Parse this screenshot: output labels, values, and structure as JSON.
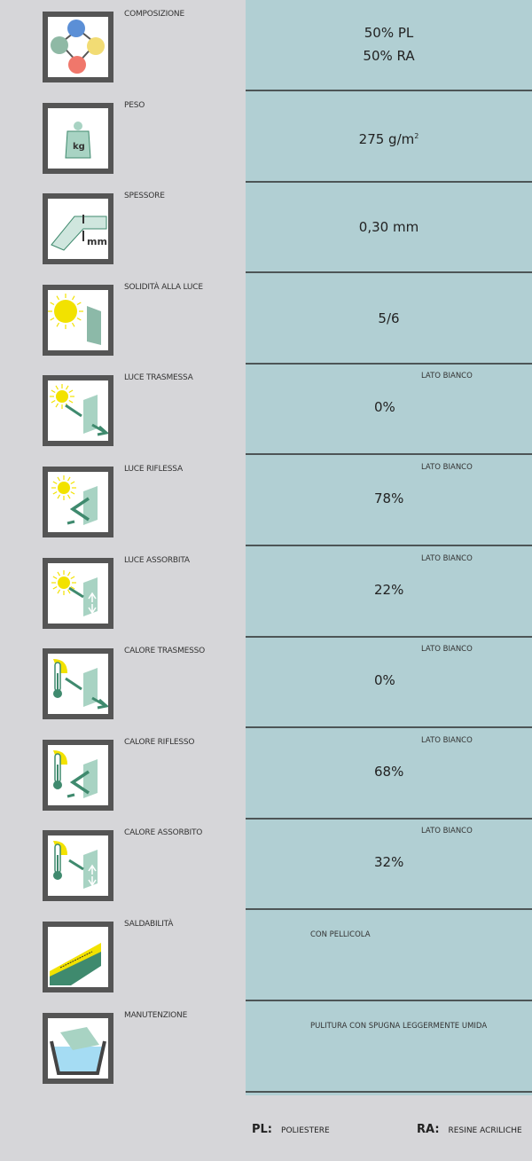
{
  "rows": [
    {
      "label": "COMPOSIZIONE",
      "icon": "molecule-icon",
      "lines": [
        "50% PL",
        "50% RA"
      ]
    },
    {
      "label": "PESO",
      "icon": "kg-weight-icon",
      "value": "275 g/m",
      "sup": "2"
    },
    {
      "label": "SPESSORE",
      "icon": "thickness-mm-icon",
      "value": "0,30 mm"
    },
    {
      "label": "SOLIDITÀ ALLA LUCE",
      "icon": "sun-panel-icon",
      "value": "5/6"
    },
    {
      "label": "LUCE TRASMESSA",
      "icon": "light-transmitted-icon",
      "side": "LATO BIANCO",
      "value": "0%"
    },
    {
      "label": "LUCE RIFLESSA",
      "icon": "light-reflected-icon",
      "side": "LATO BIANCO",
      "value": "78%"
    },
    {
      "label": "LUCE ASSORBITA",
      "icon": "light-absorbed-icon",
      "side": "LATO BIANCO",
      "value": "22%"
    },
    {
      "label": "CALORE TRASMESSO",
      "icon": "heat-transmitted-icon",
      "side": "LATO BIANCO",
      "value": "0%"
    },
    {
      "label": "CALORE RIFLESSO",
      "icon": "heat-reflected-icon",
      "side": "LATO BIANCO",
      "value": "68%"
    },
    {
      "label": "CALORE ASSORBITO",
      "icon": "heat-absorbed-icon",
      "side": "LATO BIANCO",
      "value": "32%"
    },
    {
      "label": "SALDABILITÀ",
      "icon": "weld-icon",
      "note": "CON PELLICOLA"
    },
    {
      "label": "MANUTENZIONE",
      "icon": "wash-basin-icon",
      "note": "PULITURA CON SPUGNA LEGGERMENTE UMIDA"
    }
  ],
  "legend": [
    {
      "abbr": "PL:",
      "text": "POLIESTERE"
    },
    {
      "abbr": "RA:",
      "text": "RESINE ACRILICHE"
    }
  ],
  "colors": {
    "panel": "#b1cfd3",
    "background": "#d6d6d9",
    "accent_green": "#3f8a6e",
    "sun": "#f5e400"
  }
}
